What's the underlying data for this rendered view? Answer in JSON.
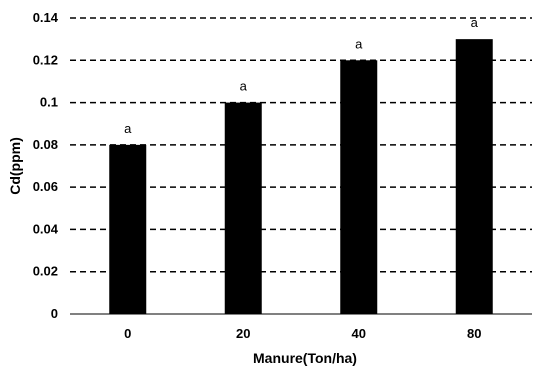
{
  "chart_data": {
    "type": "bar",
    "categories": [
      "0",
      "20",
      "40",
      "80"
    ],
    "values": [
      0.08,
      0.1,
      0.12,
      0.13
    ],
    "data_labels": [
      "a",
      "a",
      "a",
      "a"
    ],
    "yticks": [
      "0",
      "0.02",
      "0.04",
      "0.06",
      "0.08",
      "0.1",
      "0.12",
      "0.14"
    ],
    "ylim": [
      0,
      0.14
    ],
    "xlabel": "Manure(Ton/ha)",
    "ylabel": "Cd(ppm)",
    "grid": "horizontal dashed",
    "bar_color": "#000000"
  }
}
